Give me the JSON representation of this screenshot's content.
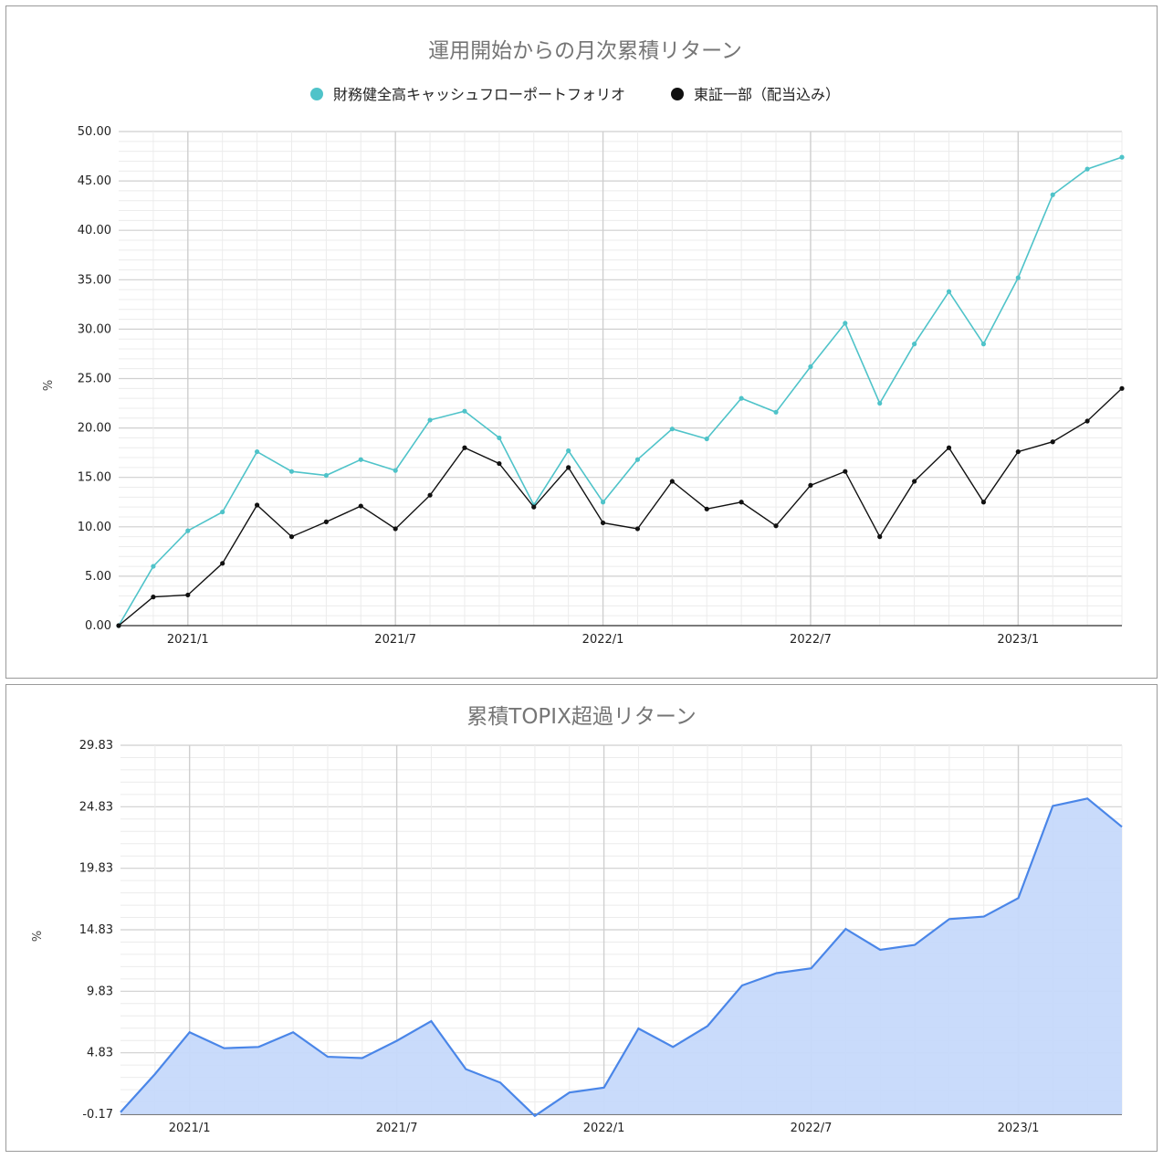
{
  "charts": [
    {
      "type": "line",
      "title": "運用開始からの月次累積リターン",
      "ylabel": "%",
      "ylim": [
        0,
        50
      ],
      "y_ticks": [
        "50.00",
        "45.00",
        "40.00",
        "35.00",
        "30.00",
        "25.00",
        "20.00",
        "15.00",
        "10.00",
        "5.00",
        "0.00"
      ],
      "x_ticks": [
        "2021/1",
        "2021/7",
        "2022/1",
        "2022/7",
        "2023/1"
      ],
      "legend_position": "top-center",
      "series": [
        {
          "name": "財務健全高キャッシュフローポートフォリオ",
          "color": "#4fc3c9",
          "values": [
            0,
            6.0,
            9.6,
            11.5,
            17.6,
            15.6,
            15.2,
            16.8,
            15.7,
            20.8,
            21.7,
            19.0,
            12.2,
            17.7,
            12.5,
            16.8,
            19.9,
            18.9,
            23.0,
            21.6,
            26.2,
            30.6,
            22.5,
            28.5,
            33.8,
            28.5,
            35.2,
            43.6,
            46.2,
            47.4
          ]
        },
        {
          "name": "東証一部（配当込み）",
          "color": "#111111",
          "values": [
            0,
            2.9,
            3.1,
            6.3,
            12.2,
            9.0,
            10.5,
            12.1,
            9.8,
            13.2,
            18.0,
            16.4,
            12.0,
            16.0,
            10.4,
            9.8,
            14.6,
            11.8,
            12.5,
            10.1,
            14.2,
            15.6,
            9.0,
            14.6,
            18.0,
            12.5,
            17.6,
            18.6,
            20.7,
            24.0
          ]
        }
      ]
    },
    {
      "type": "area",
      "title": "累積TOPIX超過リターン",
      "ylabel": "%",
      "ylim": [
        -0.17,
        29.83
      ],
      "y_ticks": [
        "29.83",
        "24.83",
        "19.83",
        "14.83",
        "9.83",
        "4.83",
        "-0.17"
      ],
      "x_ticks": [
        "2021/1",
        "2021/7",
        "2022/1",
        "2022/7",
        "2023/1"
      ],
      "series": [
        {
          "color": "#4a86e8",
          "fill": "#c6d9fb",
          "values": [
            0.0,
            3.1,
            6.5,
            5.2,
            5.3,
            6.5,
            4.5,
            4.4,
            5.8,
            7.4,
            3.5,
            2.4,
            -0.3,
            1.6,
            2.0,
            6.8,
            5.3,
            7.0,
            10.3,
            11.3,
            11.7,
            14.9,
            13.2,
            13.6,
            15.7,
            15.9,
            17.4,
            24.9,
            25.5,
            23.2
          ]
        }
      ]
    }
  ]
}
